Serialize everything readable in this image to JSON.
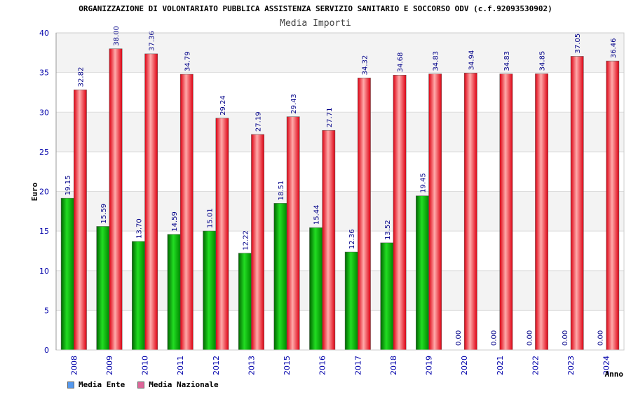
{
  "chart_data": {
    "type": "bar",
    "title": "ORGANIZZAZIONE DI VOLONTARIATO PUBBLICA ASSISTENZA SERVIZIO SANITARIO E SOCCORSO ODV (c.f.92093530902)",
    "subtitle": "Media Importi",
    "xlabel": "Anno",
    "ylabel": "Euro",
    "ylim": [
      0,
      40
    ],
    "yticks": [
      "0",
      "5",
      "10",
      "15",
      "20",
      "25",
      "30",
      "35",
      "40"
    ],
    "categories": [
      "2008",
      "2009",
      "2010",
      "2011",
      "2012",
      "2013",
      "2015",
      "2016",
      "2017",
      "2018",
      "2019",
      "2020",
      "2021",
      "2022",
      "2023",
      "2024"
    ],
    "series": [
      {
        "name": "Media Ente",
        "values": [
          19.15,
          15.59,
          13.7,
          14.59,
          15.01,
          12.22,
          18.51,
          15.44,
          12.36,
          13.52,
          19.45,
          0.0,
          0.0,
          0.0,
          0.0,
          0.0
        ],
        "labels": [
          "19.15",
          "15.59",
          "13.70",
          "14.59",
          "15.01",
          "12.22",
          "18.51",
          "15.44",
          "12.36",
          "13.52",
          "19.45",
          "0.00",
          "0.00",
          "0.00",
          "0.00",
          "0.00"
        ],
        "color": "#00aa00",
        "legend_color": "#5599ee"
      },
      {
        "name": "Media Nazionale",
        "values": [
          32.82,
          38.0,
          37.36,
          34.79,
          29.24,
          27.19,
          29.43,
          27.71,
          34.32,
          34.68,
          34.83,
          34.94,
          34.83,
          34.85,
          37.05,
          36.46
        ],
        "labels": [
          "32.82",
          "38.00",
          "37.36",
          "34.79",
          "29.24",
          "27.19",
          "29.43",
          "27.71",
          "34.32",
          "34.68",
          "34.83",
          "34.94",
          "34.83",
          "34.85",
          "37.05",
          "36.46"
        ],
        "color": "#ee1122",
        "legend_color": "#dd6699"
      }
    ],
    "grid": true,
    "legend_position": "bottom-left"
  }
}
